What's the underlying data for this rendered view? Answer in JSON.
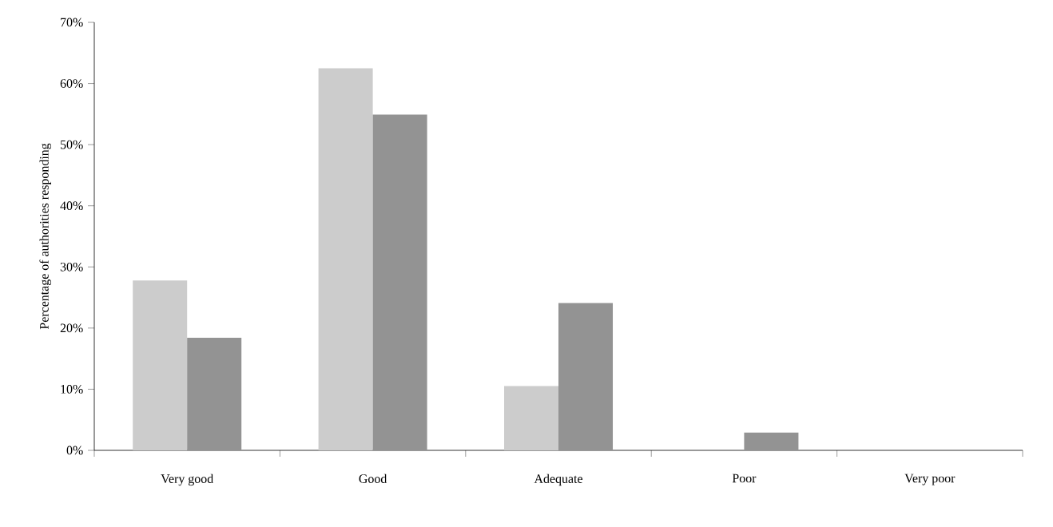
{
  "chart_data": {
    "type": "bar",
    "ylabel": "Percentage of authorities responding",
    "categories": [
      "Very good",
      "Good",
      "Adequate",
      "Poor",
      "Very poor"
    ],
    "series": [
      {
        "color": "#cccccc",
        "values": [
          27.8,
          62.5,
          10.5,
          0,
          0
        ]
      },
      {
        "color": "#939393",
        "values": [
          18.4,
          54.9,
          24.1,
          2.9,
          0
        ]
      }
    ],
    "ylim": [
      0,
      70
    ],
    "yticks": [
      {
        "value": 0,
        "label": "0%"
      },
      {
        "value": 10,
        "label": "10%"
      },
      {
        "value": 20,
        "label": "20%"
      },
      {
        "value": 30,
        "label": "30%"
      },
      {
        "value": 40,
        "label": "40%"
      },
      {
        "value": 50,
        "label": "50%"
      },
      {
        "value": 60,
        "label": "60%"
      },
      {
        "value": 70,
        "label": "70%"
      }
    ],
    "grid": false
  }
}
